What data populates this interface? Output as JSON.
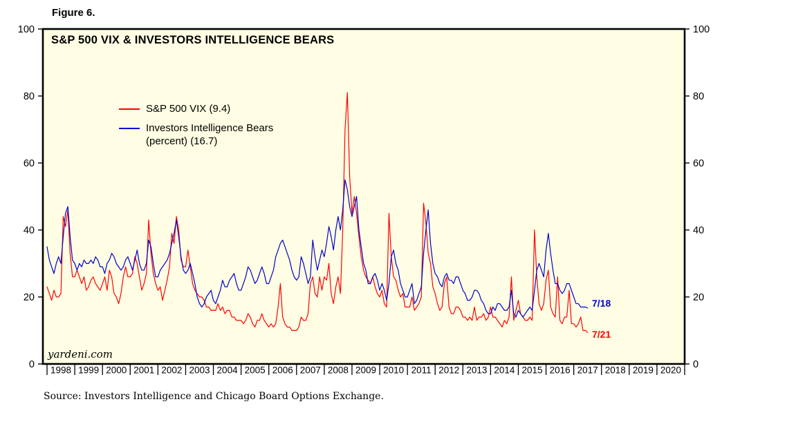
{
  "figure_label": "Figure 6.",
  "watermark": "yardeni.com",
  "source": "Source: Investors Intelligence and Chicago Board Options Exchange.",
  "annotations": {
    "blue_end_label": "7/18",
    "red_end_label": "7/21"
  },
  "legend": [
    {
      "label": "S&P 500 VIX (9.4)",
      "color": "#ff0000"
    },
    {
      "label": "Investors Intelligence Bears (percent) (16.7)",
      "color": "#0000cc"
    }
  ],
  "chart_data": {
    "type": "line",
    "title": "S&P 500 VIX & INVESTORS INTELLIGENCE BEARS",
    "plot_bg": "#fffee4",
    "ylim": [
      0,
      100
    ],
    "yticks": [
      0,
      20,
      40,
      60,
      80,
      100
    ],
    "xlim": [
      1997.85,
      2021.0
    ],
    "x_year_ticks": [
      1998,
      1999,
      2000,
      2001,
      2002,
      2003,
      2004,
      2005,
      2006,
      2007,
      2008,
      2009,
      2010,
      2011,
      2012,
      2013,
      2014,
      2015,
      2016,
      2017,
      2018,
      2019,
      2020
    ],
    "x_year_labels": [
      "1998",
      "1999",
      "2000",
      "2001",
      "2002",
      "2003",
      "2004",
      "2005",
      "2006",
      "2007",
      "2008",
      "2009",
      "2010",
      "2011",
      "2012",
      "2013",
      "2014",
      "2015",
      "2016",
      "2017",
      "2018",
      "2019",
      "2020"
    ],
    "series": [
      {
        "name": "S&P 500 VIX",
        "current_value": 9.4,
        "color": "#ff0000",
        "x_start": 1998.0,
        "x_step_years": 0.0833333,
        "values": [
          23,
          21,
          19,
          22,
          20,
          20,
          21,
          44,
          41,
          46,
          33,
          26,
          26,
          28,
          26,
          24,
          26,
          22,
          23,
          25,
          26,
          24,
          23,
          22,
          24,
          26,
          22,
          28,
          26,
          21,
          20,
          18,
          21,
          26,
          29,
          26,
          26,
          27,
          32,
          30,
          26,
          22,
          24,
          27,
          43,
          33,
          27,
          24,
          22,
          23,
          19,
          22,
          25,
          29,
          39,
          36,
          44,
          40,
          31,
          29,
          29,
          34,
          29,
          24,
          22,
          21,
          20,
          20,
          19,
          17,
          17,
          16,
          16,
          16,
          18,
          16,
          17,
          15,
          16,
          16,
          14,
          14,
          13,
          13,
          13,
          12,
          13,
          15,
          14,
          12,
          11,
          13,
          13,
          15,
          13,
          12,
          11,
          12,
          11,
          12,
          17,
          24,
          14,
          12,
          11,
          11,
          10,
          10,
          10,
          11,
          14,
          13,
          13,
          15,
          24,
          26,
          21,
          20,
          26,
          22,
          26,
          25,
          30,
          21,
          18,
          23,
          26,
          21,
          40,
          70,
          81,
          56,
          45,
          50,
          45,
          38,
          32,
          28,
          26,
          25,
          24,
          26,
          23,
          21,
          20,
          22,
          18,
          17,
          45,
          32,
          26,
          25,
          22,
          20,
          21,
          17,
          17,
          17,
          20,
          16,
          17,
          18,
          20,
          48,
          42,
          33,
          30,
          23,
          21,
          18,
          16,
          17,
          24,
          26,
          17,
          15,
          15,
          17,
          17,
          16,
          14,
          14,
          13,
          14,
          13,
          17,
          13,
          14,
          14,
          15,
          13,
          14,
          17,
          14,
          14,
          13,
          12,
          11,
          13,
          12,
          14,
          26,
          13,
          16,
          19,
          15,
          14,
          13,
          13,
          14,
          13,
          40,
          26,
          18,
          16,
          18,
          25,
          28,
          17,
          15,
          14,
          26,
          13,
          12,
          14,
          14,
          22,
          12,
          12,
          11,
          12,
          14,
          10,
          10,
          9.4
        ]
      },
      {
        "name": "Investors Intelligence Bears (percent)",
        "current_value": 16.7,
        "color": "#0000cc",
        "x_start": 1998.0,
        "x_step_years": 0.0833333,
        "values": [
          35,
          31,
          29,
          27,
          30,
          32,
          30,
          38,
          45,
          47,
          38,
          31,
          30,
          28,
          30,
          29,
          31,
          30,
          30,
          31,
          30,
          32,
          31,
          29,
          29,
          27,
          30,
          31,
          33,
          32,
          30,
          29,
          28,
          29,
          31,
          32,
          30,
          28,
          31,
          34,
          30,
          28,
          28,
          30,
          37,
          35,
          30,
          26,
          26,
          28,
          29,
          30,
          31,
          33,
          36,
          39,
          43,
          38,
          32,
          28,
          27,
          28,
          30,
          27,
          24,
          20,
          18,
          17,
          18,
          20,
          21,
          22,
          19,
          18,
          20,
          22,
          25,
          23,
          23,
          25,
          26,
          27,
          24,
          22,
          22,
          24,
          26,
          29,
          28,
          26,
          24,
          25,
          27,
          29,
          27,
          24,
          24,
          26,
          28,
          32,
          34,
          36,
          37,
          35,
          33,
          31,
          28,
          26,
          25,
          26,
          32,
          30,
          27,
          24,
          26,
          37,
          32,
          28,
          31,
          34,
          32,
          36,
          41,
          38,
          34,
          40,
          44,
          40,
          46,
          55,
          52,
          47,
          44,
          47,
          50,
          40,
          35,
          30,
          28,
          24,
          24,
          26,
          27,
          25,
          22,
          24,
          22,
          19,
          24,
          32,
          34,
          30,
          28,
          24,
          22,
          20,
          20,
          22,
          24,
          18,
          19,
          21,
          23,
          33,
          40,
          46,
          36,
          30,
          27,
          26,
          24,
          23,
          26,
          27,
          25,
          25,
          24,
          26,
          26,
          24,
          22,
          21,
          19,
          19,
          20,
          22,
          22,
          21,
          19,
          18,
          16,
          15,
          15,
          17,
          16,
          18,
          18,
          17,
          16,
          16,
          17,
          22,
          15,
          14,
          16,
          15,
          14,
          15,
          16,
          17,
          16,
          22,
          28,
          30,
          28,
          26,
          34,
          39,
          33,
          28,
          24,
          24,
          22,
          21,
          22,
          24,
          24,
          22,
          20,
          18,
          18,
          17,
          17,
          17,
          16.7
        ]
      }
    ]
  }
}
